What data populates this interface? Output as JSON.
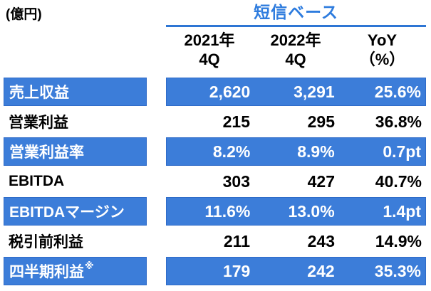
{
  "unit_label": "(億円)",
  "header": {
    "basis_label": "短信ベース",
    "columns": [
      {
        "line1": "2021年",
        "line2": "4Q"
      },
      {
        "line1": "2022年",
        "line2": "4Q"
      },
      {
        "line1": "YoY",
        "line2": "（%）"
      }
    ]
  },
  "rows": [
    {
      "label": "売上収益",
      "sup": "",
      "highlight": true,
      "values": [
        "2,620",
        "3,291",
        "25.6%"
      ]
    },
    {
      "label": "営業利益",
      "sup": "",
      "highlight": false,
      "values": [
        "215",
        "295",
        "36.8%"
      ]
    },
    {
      "label": "営業利益率",
      "sup": "",
      "highlight": true,
      "values": [
        "8.2%",
        "8.9%",
        "0.7pt"
      ]
    },
    {
      "label": "EBITDA",
      "sup": "",
      "highlight": false,
      "values": [
        "303",
        "427",
        "40.7%"
      ]
    },
    {
      "label": "EBITDAマージン",
      "sup": "",
      "highlight": true,
      "values": [
        "11.6%",
        "13.0%",
        "1.4pt"
      ]
    },
    {
      "label": "税引前利益",
      "sup": "",
      "highlight": false,
      "values": [
        "211",
        "243",
        "14.9%"
      ]
    },
    {
      "label": "四半期利益",
      "sup": "※",
      "highlight": true,
      "values": [
        "179",
        "242",
        "35.3%"
      ]
    }
  ],
  "colors": {
    "row_highlight_blue": "#3c7dd9",
    "row_highlight_border": "#2f6bc8",
    "accent_text_blue": "#2e7cde",
    "underline_blue": "#2e76d4",
    "text_black": "#000000",
    "text_white": "#ffffff"
  },
  "chart_data": {
    "type": "table",
    "title": "短信ベース",
    "unit": "億円",
    "columns": [
      "2021年4Q",
      "2022年4Q",
      "YoY（%）"
    ],
    "row_labels": [
      "売上収益",
      "営業利益",
      "営業利益率",
      "EBITDA",
      "EBITDAマージン",
      "税引前利益",
      "四半期利益※"
    ],
    "cells": [
      [
        "2,620",
        "3,291",
        "25.6%"
      ],
      [
        "215",
        "295",
        "36.8%"
      ],
      [
        "8.2%",
        "8.9%",
        "0.7pt"
      ],
      [
        "303",
        "427",
        "40.7%"
      ],
      [
        "11.6%",
        "13.0%",
        "1.4pt"
      ],
      [
        "211",
        "243",
        "14.9%"
      ],
      [
        "179",
        "242",
        "35.3%"
      ]
    ],
    "highlighted_rows": [
      "売上収益",
      "営業利益率",
      "EBITDAマージン",
      "四半期利益※"
    ]
  }
}
